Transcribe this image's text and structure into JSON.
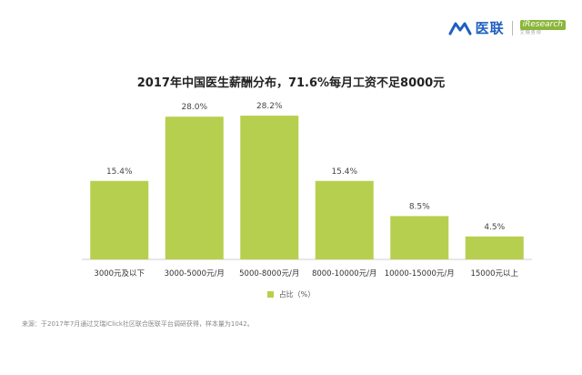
{
  "brand": {
    "name": "医联",
    "partner_badge": "iResearch",
    "partner_sub": "艾瑞咨询"
  },
  "chart_data": {
    "type": "bar",
    "title": "2017年中国医生薪酬分布，71.6%每月工资不足8000元",
    "categories": [
      "3000元及以下",
      "3000-5000元/月",
      "5000-8000元/月",
      "8000-10000元/月",
      "10000-15000元/月",
      "15000元以上"
    ],
    "series": [
      {
        "name": "占比（%）",
        "values": [
          15.4,
          28.0,
          28.2,
          15.4,
          8.5,
          4.5
        ]
      }
    ],
    "data_labels": [
      "15.4%",
      "28.0%",
      "28.2%",
      "15.4%",
      "8.5%",
      "4.5%"
    ],
    "ylim": [
      0,
      30
    ],
    "grid": false,
    "legend_position": "bottom",
    "bar_color": "#b7cf4e"
  },
  "source": "来源：于2017年7月通过艾瑞iClick社区联合医联平台调研获得，样本量为1042。"
}
